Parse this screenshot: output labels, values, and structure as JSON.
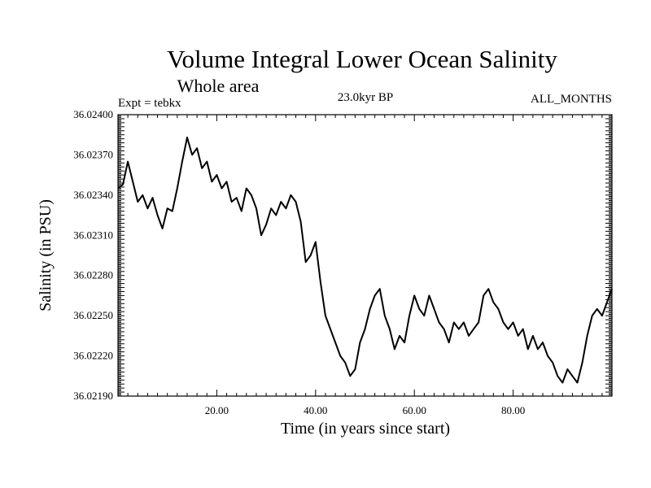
{
  "chart_data": {
    "type": "line",
    "title": "Volume Integral Lower Ocean Salinity",
    "subtitle": "Whole area",
    "left_note": "Expt = tebkx",
    "center_note": "23.0kyr BP",
    "right_note": "ALL_MONTHS",
    "xlabel": "Time (in years since start)",
    "ylabel": "Salinity (in PSU)",
    "xlim": [
      0,
      100
    ],
    "ylim": [
      36.0219,
      36.024
    ],
    "x_ticks": [
      20,
      40,
      60,
      80
    ],
    "x_tick_labels": [
      "20.00",
      "40.00",
      "60.00",
      "80.00"
    ],
    "y_ticks": [
      36.0219,
      36.0222,
      36.0225,
      36.0228,
      36.0231,
      36.0234,
      36.0237,
      36.024
    ],
    "y_tick_labels": [
      "36.02190",
      "36.02220",
      "36.02250",
      "36.02280",
      "36.02310",
      "36.02340",
      "36.02370",
      "36.02400"
    ],
    "grid": false,
    "series": [
      {
        "name": "Salinity",
        "color": "#000000",
        "x": [
          0,
          1,
          2,
          3,
          4,
          5,
          6,
          7,
          8,
          9,
          10,
          11,
          12,
          13,
          14,
          15,
          16,
          17,
          18,
          19,
          20,
          21,
          22,
          23,
          24,
          25,
          26,
          27,
          28,
          29,
          30,
          31,
          32,
          33,
          34,
          35,
          36,
          37,
          38,
          39,
          40,
          41,
          42,
          43,
          44,
          45,
          46,
          47,
          48,
          49,
          50,
          51,
          52,
          53,
          54,
          55,
          56,
          57,
          58,
          59,
          60,
          61,
          62,
          63,
          64,
          65,
          66,
          67,
          68,
          69,
          70,
          71,
          72,
          73,
          74,
          75,
          76,
          77,
          78,
          79,
          80,
          81,
          82,
          83,
          84,
          85,
          86,
          87,
          88,
          89,
          90,
          91,
          92,
          93,
          94,
          95,
          96,
          97,
          98,
          99,
          100
        ],
        "values": [
          36.02345,
          36.02348,
          36.02365,
          36.0235,
          36.02335,
          36.0234,
          36.0233,
          36.02338,
          36.02325,
          36.02315,
          36.0233,
          36.02328,
          36.02345,
          36.02365,
          36.02383,
          36.0237,
          36.02375,
          36.0236,
          36.02365,
          36.0235,
          36.02355,
          36.02345,
          36.0235,
          36.02335,
          36.02338,
          36.02328,
          36.02345,
          36.0234,
          36.0233,
          36.0231,
          36.02318,
          36.0233,
          36.02325,
          36.02335,
          36.0233,
          36.0234,
          36.02335,
          36.0232,
          36.0229,
          36.02295,
          36.02305,
          36.02275,
          36.0225,
          36.0224,
          36.0223,
          36.0222,
          36.02215,
          36.02205,
          36.0221,
          36.0223,
          36.0224,
          36.02255,
          36.02265,
          36.0227,
          36.0225,
          36.0224,
          36.02225,
          36.02235,
          36.0223,
          36.0225,
          36.02265,
          36.02255,
          36.0225,
          36.02265,
          36.02255,
          36.02245,
          36.0224,
          36.0223,
          36.02245,
          36.0224,
          36.02245,
          36.02235,
          36.0224,
          36.02245,
          36.02265,
          36.0227,
          36.0226,
          36.02255,
          36.02245,
          36.0224,
          36.02245,
          36.02235,
          36.0224,
          36.02225,
          36.02235,
          36.02225,
          36.0223,
          36.0222,
          36.02215,
          36.02205,
          36.022,
          36.0221,
          36.02205,
          36.022,
          36.02215,
          36.02235,
          36.0225,
          36.02255,
          36.0225,
          36.0226,
          36.0227
        ]
      }
    ]
  }
}
